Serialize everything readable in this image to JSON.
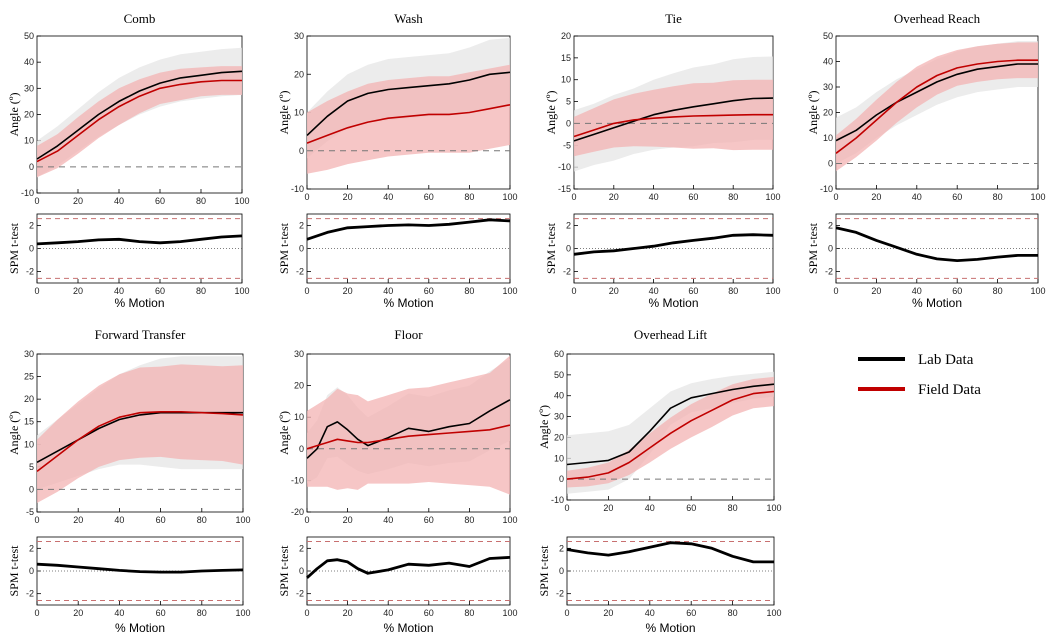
{
  "chart_data": {
    "type": "line",
    "x_label": "% Motion",
    "angle_ylabel": "Angle (º)",
    "spm_ylabel": "SPM t-test",
    "x_range": [
      0,
      100
    ],
    "x_ticks": [
      0,
      20,
      40,
      60,
      80,
      100
    ],
    "legend": [
      {
        "name": "Lab Data",
        "color": "#000000"
      },
      {
        "name": "Field Data",
        "color": "#c00000"
      }
    ],
    "colors": {
      "lab_line": "#000000",
      "field_line": "#c00000",
      "lab_band": "#e6e6e6",
      "field_band": "#f3b3b3",
      "threshold": "#c87070"
    },
    "panels": [
      {
        "title": "Comb",
        "x": [
          0,
          10,
          20,
          30,
          40,
          50,
          60,
          70,
          80,
          90,
          100
        ],
        "ylim": [
          -10,
          50
        ],
        "yticks": [
          -10,
          0,
          10,
          20,
          30,
          40,
          50
        ],
        "lab_mean": [
          3,
          8,
          14,
          20,
          25,
          29,
          32,
          34,
          35,
          36,
          36.5
        ],
        "lab_sd": [
          7,
          7.5,
          8,
          8.5,
          9,
          9,
          9,
          9,
          9,
          9,
          9
        ],
        "field_mean": [
          2,
          6,
          12,
          18,
          23,
          27,
          30,
          31.5,
          32.5,
          33,
          33
        ],
        "field_sd": [
          6,
          6.5,
          7,
          7,
          7,
          6.5,
          6,
          6,
          5.5,
          5.5,
          5.5
        ],
        "spm_ylim": [
          -3,
          3
        ],
        "spm_yticks": [
          -2,
          0,
          2
        ],
        "spm_threshold": 2.6,
        "spm_t": [
          0.4,
          0.5,
          0.6,
          0.75,
          0.8,
          0.6,
          0.5,
          0.6,
          0.8,
          1.0,
          1.1
        ]
      },
      {
        "title": "Wash",
        "x": [
          0,
          10,
          20,
          30,
          40,
          50,
          60,
          70,
          80,
          90,
          100
        ],
        "ylim": [
          -10,
          30
        ],
        "yticks": [
          -10,
          0,
          10,
          20,
          30
        ],
        "lab_mean": [
          4,
          9,
          13,
          15,
          16,
          16.5,
          17,
          17.5,
          18.5,
          20,
          20.5
        ],
        "lab_sd": [
          6,
          6.5,
          7,
          7.5,
          8,
          8,
          8,
          8,
          8.5,
          9,
          9
        ],
        "field_mean": [
          2,
          4,
          6,
          7.5,
          8.5,
          9,
          9.5,
          9.5,
          10,
          11,
          12
        ],
        "field_sd": [
          8,
          9,
          9.5,
          10,
          10,
          10,
          10,
          10,
          10.5,
          10.5,
          10.5
        ],
        "spm_ylim": [
          -3,
          3
        ],
        "spm_yticks": [
          -2,
          0,
          2
        ],
        "spm_threshold": 2.6,
        "spm_t": [
          0.8,
          1.4,
          1.8,
          1.9,
          2.0,
          2.05,
          2.0,
          2.1,
          2.3,
          2.5,
          2.4
        ]
      },
      {
        "title": "Tie",
        "x": [
          0,
          10,
          20,
          30,
          40,
          50,
          60,
          70,
          80,
          90,
          100
        ],
        "ylim": [
          -15,
          20
        ],
        "yticks": [
          -15,
          -10,
          -5,
          0,
          5,
          10,
          15,
          20
        ],
        "lab_mean": [
          -4,
          -2.5,
          -1,
          0.5,
          2,
          3,
          3.8,
          4.5,
          5.2,
          5.7,
          5.8
        ],
        "lab_sd": [
          7,
          7,
          7.5,
          7.5,
          8,
          8.5,
          9,
          9,
          9.5,
          9.5,
          9.5
        ],
        "field_mean": [
          -3,
          -1.5,
          0,
          0.8,
          1.2,
          1.5,
          1.7,
          1.8,
          1.9,
          2,
          2
        ],
        "field_sd": [
          4.5,
          5,
          5.5,
          6,
          6.5,
          7,
          7.5,
          7.5,
          8,
          8,
          8
        ],
        "spm_ylim": [
          -3,
          3
        ],
        "spm_yticks": [
          -2,
          0,
          2
        ],
        "spm_threshold": 2.6,
        "spm_t": [
          -0.5,
          -0.3,
          -0.2,
          0,
          0.2,
          0.5,
          0.7,
          0.9,
          1.15,
          1.2,
          1.15
        ]
      },
      {
        "title": "Overhead Reach",
        "x": [
          0,
          10,
          20,
          30,
          40,
          50,
          60,
          70,
          80,
          90,
          100
        ],
        "ylim": [
          -10,
          50
        ],
        "yticks": [
          -10,
          0,
          10,
          20,
          30,
          40,
          50
        ],
        "lab_mean": [
          9,
          13,
          19,
          24,
          28,
          32,
          35,
          37,
          38,
          39,
          39
        ],
        "lab_sd": [
          9,
          9,
          9,
          9,
          9,
          9,
          9,
          9,
          9,
          9,
          9
        ],
        "field_mean": [
          4,
          10,
          17,
          24,
          30,
          34.5,
          37.5,
          39,
          40,
          40.5,
          40.5
        ],
        "field_sd": [
          7,
          7.5,
          8,
          8,
          8,
          7.5,
          7,
          7,
          7,
          7,
          7
        ],
        "spm_ylim": [
          -3,
          3
        ],
        "spm_yticks": [
          -2,
          0,
          2
        ],
        "spm_threshold": 2.6,
        "spm_t": [
          1.8,
          1.4,
          0.7,
          0.1,
          -0.5,
          -0.9,
          -1.05,
          -0.95,
          -0.75,
          -0.6,
          -0.6
        ]
      },
      {
        "title": "Forward Transfer",
        "x": [
          0,
          10,
          20,
          30,
          40,
          50,
          60,
          70,
          80,
          90,
          100
        ],
        "ylim": [
          -5,
          30
        ],
        "yticks": [
          -5,
          0,
          5,
          10,
          15,
          20,
          25,
          30
        ],
        "lab_mean": [
          6,
          8.5,
          11,
          13.5,
          15.5,
          16.5,
          17,
          17,
          17,
          17,
          17
        ],
        "lab_sd": [
          6,
          7,
          8,
          9,
          10,
          11,
          12,
          12.5,
          12.5,
          12.5,
          12.5
        ],
        "field_mean": [
          4,
          7.5,
          11,
          14,
          16,
          17,
          17.2,
          17.2,
          17,
          16.8,
          16.5
        ],
        "field_sd": [
          7,
          8,
          8.5,
          9,
          9.5,
          10,
          10,
          10.5,
          10.5,
          10.5,
          11
        ],
        "spm_ylim": [
          -3,
          3
        ],
        "spm_yticks": [
          -2,
          0,
          2
        ],
        "spm_threshold": 2.6,
        "spm_t": [
          0.6,
          0.5,
          0.35,
          0.2,
          0.05,
          -0.05,
          -0.1,
          -0.1,
          0,
          0.05,
          0.1
        ]
      },
      {
        "title": "Floor",
        "x": [
          0,
          5,
          10,
          15,
          20,
          25,
          30,
          40,
          50,
          60,
          70,
          80,
          90,
          100
        ],
        "ylim": [
          -20,
          30
        ],
        "yticks": [
          -20,
          -10,
          0,
          10,
          20,
          30
        ],
        "lab_mean": [
          -3,
          0,
          7,
          8.5,
          6,
          3,
          1,
          3.5,
          6.5,
          5.5,
          7,
          8,
          12,
          15.5
        ],
        "lab_sd": [
          8,
          9,
          10,
          11,
          11,
          10,
          9,
          10,
          11,
          11,
          11.5,
          12,
          12.5,
          13
        ],
        "field_mean": [
          0,
          1,
          2,
          3,
          2.5,
          2,
          2,
          3,
          4,
          4.5,
          5,
          5.5,
          6,
          7.5
        ],
        "field_sd": [
          12,
          13,
          14,
          16,
          15,
          15,
          13,
          14,
          15,
          15,
          16,
          17,
          18,
          22
        ],
        "spm_ylim": [
          -3,
          3
        ],
        "spm_yticks": [
          -2,
          0,
          2
        ],
        "spm_threshold": 2.6,
        "spm_t": [
          -0.6,
          0.2,
          0.9,
          1.0,
          0.8,
          0.2,
          -0.2,
          0.1,
          0.6,
          0.5,
          0.7,
          0.4,
          1.1,
          1.2
        ]
      },
      {
        "title": "Overhead Lift",
        "x": [
          0,
          10,
          20,
          30,
          40,
          50,
          60,
          70,
          80,
          90,
          100
        ],
        "ylim": [
          -10,
          60
        ],
        "yticks": [
          -10,
          0,
          10,
          20,
          30,
          40,
          50,
          60
        ],
        "lab_mean": [
          7,
          8,
          9,
          13,
          23,
          34,
          39,
          41,
          43,
          44.5,
          45.5
        ],
        "lab_sd": [
          14,
          14,
          14,
          13,
          11,
          8,
          7,
          7,
          6.5,
          6,
          6
        ],
        "field_mean": [
          0,
          1,
          3,
          8,
          15,
          22,
          28,
          33,
          38,
          41,
          42
        ],
        "field_sd": [
          4,
          4.5,
          5,
          6,
          7,
          7.5,
          8,
          8,
          7.5,
          7,
          7
        ],
        "spm_ylim": [
          -3,
          3
        ],
        "spm_yticks": [
          -2,
          0,
          2
        ],
        "spm_threshold": 2.6,
        "spm_t": [
          1.9,
          1.6,
          1.4,
          1.7,
          2.1,
          2.5,
          2.4,
          2.0,
          1.3,
          0.8,
          0.8
        ]
      }
    ]
  }
}
